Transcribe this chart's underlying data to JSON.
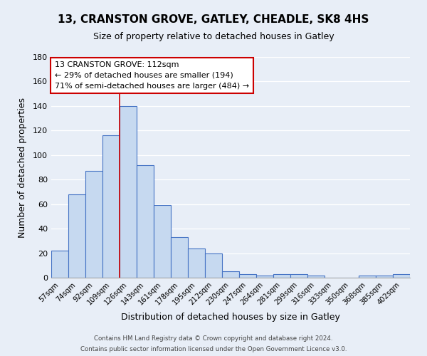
{
  "title1": "13, CRANSTON GROVE, GATLEY, CHEADLE, SK8 4HS",
  "title2": "Size of property relative to detached houses in Gatley",
  "xlabel": "Distribution of detached houses by size in Gatley",
  "ylabel": "Number of detached properties",
  "bar_labels": [
    "57sqm",
    "74sqm",
    "92sqm",
    "109sqm",
    "126sqm",
    "143sqm",
    "161sqm",
    "178sqm",
    "195sqm",
    "212sqm",
    "230sqm",
    "247sqm",
    "264sqm",
    "281sqm",
    "299sqm",
    "316sqm",
    "333sqm",
    "350sqm",
    "368sqm",
    "385sqm",
    "402sqm"
  ],
  "bar_values": [
    22,
    68,
    87,
    116,
    140,
    92,
    59,
    33,
    24,
    20,
    5,
    3,
    2,
    3,
    3,
    2,
    0,
    0,
    2,
    2,
    3
  ],
  "bar_color": "#c6d9f0",
  "bar_edge_color": "#4472c4",
  "ylim": [
    0,
    180
  ],
  "yticks": [
    0,
    20,
    40,
    60,
    80,
    100,
    120,
    140,
    160,
    180
  ],
  "vline_x": 3.5,
  "vline_color": "#cc0000",
  "annotation_text_line1": "13 CRANSTON GROVE: 112sqm",
  "annotation_text_line2": "← 29% of detached houses are smaller (194)",
  "annotation_text_line3": "71% of semi-detached houses are larger (484) →",
  "background_color": "#e8eef7",
  "plot_bg_color": "#e8eef7",
  "footer1": "Contains HM Land Registry data © Crown copyright and database right 2024.",
  "footer2": "Contains public sector information licensed under the Open Government Licence v3.0."
}
